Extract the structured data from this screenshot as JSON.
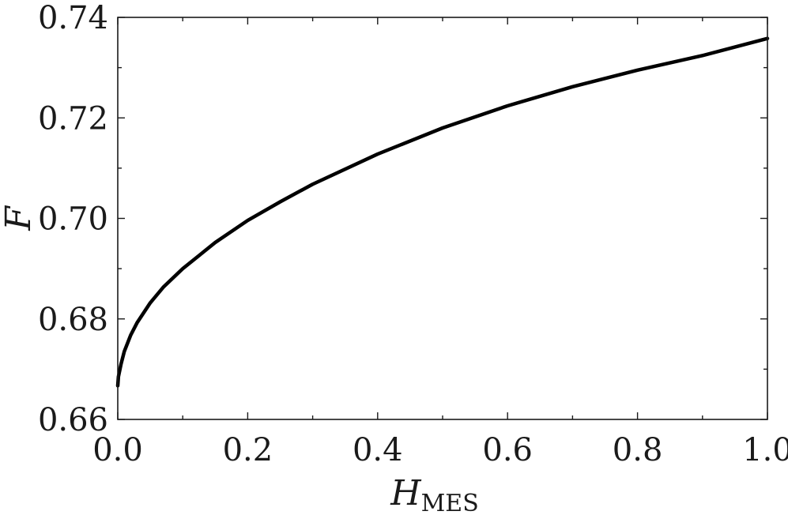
{
  "chart_data": {
    "type": "line",
    "title": "",
    "xlabel_main": "H",
    "xlabel_sub": "MES",
    "ylabel": "F",
    "xlim": [
      0.0,
      1.0
    ],
    "ylim": [
      0.66,
      0.74
    ],
    "x_ticks": [
      0.0,
      0.2,
      0.4,
      0.6,
      0.8,
      1.0
    ],
    "x_tick_labels": [
      "0.0",
      "0.2",
      "0.4",
      "0.6",
      "0.8",
      "1.0"
    ],
    "y_ticks": [
      0.66,
      0.68,
      0.7,
      0.72,
      0.74
    ],
    "y_tick_labels": [
      "0.66",
      "0.68",
      "0.70",
      "0.72",
      "0.74"
    ],
    "y_minor_ticks": [
      0.67,
      0.69,
      0.71,
      0.73
    ],
    "x_minor_ticks": [
      0.1,
      0.3,
      0.5,
      0.7,
      0.9
    ],
    "grid": false,
    "line_color": "#000000",
    "series": [
      {
        "x": [
          0.0,
          0.001,
          0.005,
          0.01,
          0.02,
          0.03,
          0.05,
          0.07,
          0.1,
          0.15,
          0.2,
          0.25,
          0.3,
          0.4,
          0.5,
          0.6,
          0.7,
          0.8,
          0.9,
          1.0
        ],
        "y": [
          0.6667,
          0.6685,
          0.671,
          0.6735,
          0.6768,
          0.6793,
          0.6832,
          0.6863,
          0.69,
          0.6952,
          0.6996,
          0.7033,
          0.7068,
          0.7128,
          0.718,
          0.7224,
          0.7262,
          0.7295,
          0.7324,
          0.7358
        ]
      }
    ]
  }
}
